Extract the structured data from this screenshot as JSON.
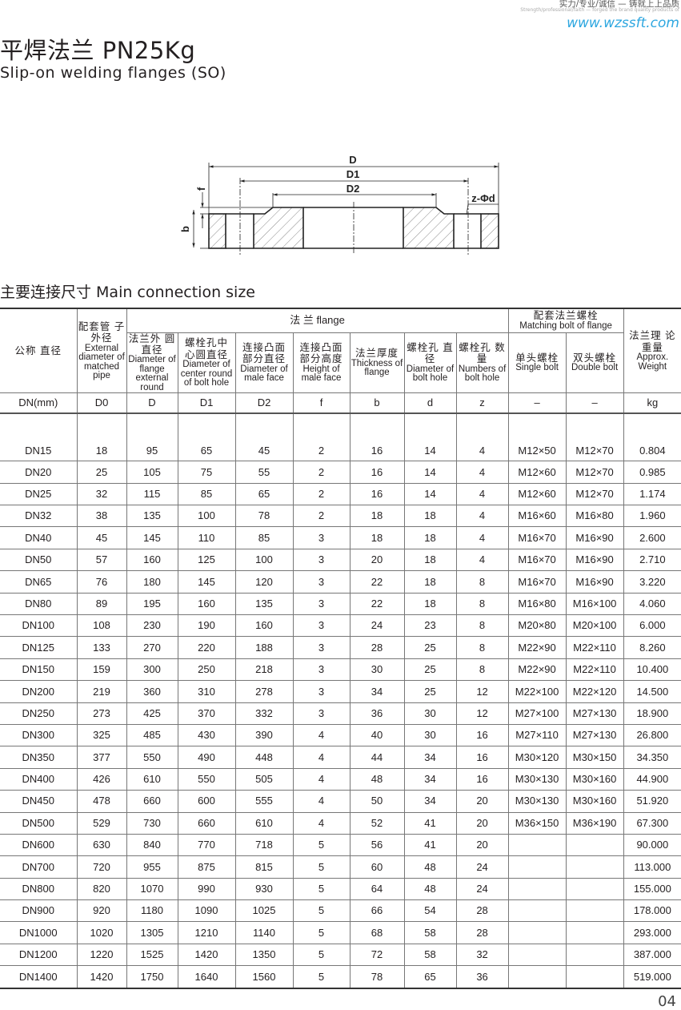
{
  "header": {
    "slogan_cn": "实力/专业/诚信 — 铸就上上品质",
    "slogan_en": "Strength/professional/faith — forged the brand quality products of",
    "website": "www.wzssft.com"
  },
  "title": "平焊法兰 PN25Kg",
  "subtitle": "Slip-on welding flanges (SO)",
  "diagram": {
    "labels": {
      "D": "D",
      "D1": "D1",
      "D2": "D2",
      "f": "f",
      "b": "b",
      "zd": "z-Φd"
    }
  },
  "section_title": "主要连接尺寸  Main connection size",
  "table": {
    "group_flange": "法        兰    flange",
    "group_bolt_cn": "配套法兰螺栓",
    "group_bolt_en": "Matching bolt of flange",
    "columns": [
      {
        "cn": "公称 直径",
        "en": ""
      },
      {
        "cn": "配套管 子外径",
        "en": "External diameter of matched pipe"
      },
      {
        "cn": "法兰外 圆直径",
        "en": "Diameter of flange external round"
      },
      {
        "cn": "螺栓孔中 心圆直径",
        "en": "Diameter of center round of bolt hole"
      },
      {
        "cn": "连接凸面 部分直径",
        "en": "Diameter of male face"
      },
      {
        "cn": "连接凸面 部分高度",
        "en": "Height of male face"
      },
      {
        "cn": "法兰厚度",
        "en": "Thickness of flange"
      },
      {
        "cn": "螺栓孔 直  径",
        "en": "Diameter of bolt hole"
      },
      {
        "cn": "螺栓孔 数  量",
        "en": "Numbers of bolt hole"
      },
      {
        "cn": "单头螺栓",
        "en": "Single bolt"
      },
      {
        "cn": "双头螺栓",
        "en": "Double bolt"
      },
      {
        "cn": "法兰理 论重量",
        "en": "Approx. Weight"
      }
    ],
    "units": [
      "DN(mm)",
      "D0",
      "D",
      "D1",
      "D2",
      "f",
      "b",
      "d",
      "z",
      "–",
      "–",
      "kg"
    ],
    "rows": [
      [
        "DN15",
        "18",
        "95",
        "65",
        "45",
        "2",
        "16",
        "14",
        "4",
        "M12×50",
        "M12×70",
        "0.804"
      ],
      [
        "DN20",
        "25",
        "105",
        "75",
        "55",
        "2",
        "16",
        "14",
        "4",
        "M12×60",
        "M12×70",
        "0.985"
      ],
      [
        "DN25",
        "32",
        "115",
        "85",
        "65",
        "2",
        "16",
        "14",
        "4",
        "M12×60",
        "M12×70",
        "1.174"
      ],
      [
        "DN32",
        "38",
        "135",
        "100",
        "78",
        "2",
        "18",
        "18",
        "4",
        "M16×60",
        "M16×80",
        "1.960"
      ],
      [
        "DN40",
        "45",
        "145",
        "110",
        "85",
        "3",
        "18",
        "18",
        "4",
        "M16×70",
        "M16×90",
        "2.600"
      ],
      [
        "DN50",
        "57",
        "160",
        "125",
        "100",
        "3",
        "20",
        "18",
        "4",
        "M16×70",
        "M16×90",
        "2.710"
      ],
      [
        "DN65",
        "76",
        "180",
        "145",
        "120",
        "3",
        "22",
        "18",
        "8",
        "M16×70",
        "M16×90",
        "3.220"
      ],
      [
        "DN80",
        "89",
        "195",
        "160",
        "135",
        "3",
        "22",
        "18",
        "8",
        "M16×80",
        "M16×100",
        "4.060"
      ],
      [
        "DN100",
        "108",
        "230",
        "190",
        "160",
        "3",
        "24",
        "23",
        "8",
        "M20×80",
        "M20×100",
        "6.000"
      ],
      [
        "DN125",
        "133",
        "270",
        "220",
        "188",
        "3",
        "28",
        "25",
        "8",
        "M22×90",
        "M22×110",
        "8.260"
      ],
      [
        "DN150",
        "159",
        "300",
        "250",
        "218",
        "3",
        "30",
        "25",
        "8",
        "M22×90",
        "M22×110",
        "10.400"
      ],
      [
        "DN200",
        "219",
        "360",
        "310",
        "278",
        "3",
        "34",
        "25",
        "12",
        "M22×100",
        "M22×120",
        "14.500"
      ],
      [
        "DN250",
        "273",
        "425",
        "370",
        "332",
        "3",
        "36",
        "30",
        "12",
        "M27×100",
        "M27×130",
        "18.900"
      ],
      [
        "DN300",
        "325",
        "485",
        "430",
        "390",
        "4",
        "40",
        "30",
        "16",
        "M27×110",
        "M27×130",
        "26.800"
      ],
      [
        "DN350",
        "377",
        "550",
        "490",
        "448",
        "4",
        "44",
        "34",
        "16",
        "M30×120",
        "M30×150",
        "34.350"
      ],
      [
        "DN400",
        "426",
        "610",
        "550",
        "505",
        "4",
        "48",
        "34",
        "16",
        "M30×130",
        "M30×160",
        "44.900"
      ],
      [
        "DN450",
        "478",
        "660",
        "600",
        "555",
        "4",
        "50",
        "34",
        "20",
        "M30×130",
        "M30×160",
        "51.920"
      ],
      [
        "DN500",
        "529",
        "730",
        "660",
        "610",
        "4",
        "52",
        "41",
        "20",
        "M36×150",
        "M36×190",
        "67.300"
      ],
      [
        "DN600",
        "630",
        "840",
        "770",
        "718",
        "5",
        "56",
        "41",
        "20",
        "",
        "",
        "90.000"
      ],
      [
        "DN700",
        "720",
        "955",
        "875",
        "815",
        "5",
        "60",
        "48",
        "24",
        "",
        "",
        "113.000"
      ],
      [
        "DN800",
        "820",
        "1070",
        "990",
        "930",
        "5",
        "64",
        "48",
        "24",
        "",
        "",
        "155.000"
      ],
      [
        "DN900",
        "920",
        "1180",
        "1090",
        "1025",
        "5",
        "66",
        "54",
        "28",
        "",
        "",
        "178.000"
      ],
      [
        "DN1000",
        "1020",
        "1305",
        "1210",
        "1140",
        "5",
        "68",
        "58",
        "28",
        "",
        "",
        "293.000"
      ],
      [
        "DN1200",
        "1220",
        "1525",
        "1420",
        "1350",
        "5",
        "72",
        "58",
        "32",
        "",
        "",
        "387.000"
      ],
      [
        "DN1400",
        "1420",
        "1750",
        "1640",
        "1560",
        "5",
        "78",
        "65",
        "36",
        "",
        "",
        "519.000"
      ]
    ]
  },
  "page_number": "04"
}
